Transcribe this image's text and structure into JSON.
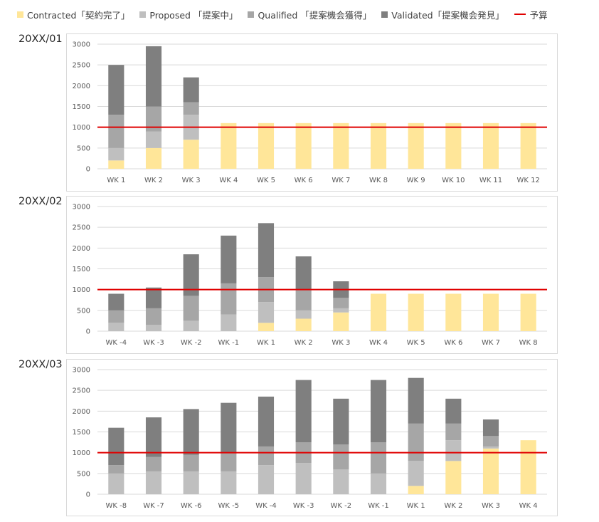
{
  "legend": {
    "items": [
      {
        "label": "Contracted「契約完了」",
        "color": "#ffe699"
      },
      {
        "label": "Proposed 「提案中」",
        "color": "#bfbfbf"
      },
      {
        "label": "Qualified 「提案機会獲得」",
        "color": "#a6a6a6"
      },
      {
        "label": "Validated「提案機会発見」",
        "color": "#7f7f7f"
      }
    ],
    "budget_label": "予算",
    "budget_color": "#e00000"
  },
  "chart_data": [
    {
      "type": "bar",
      "stacked": true,
      "period_label": "20XX/01",
      "categories": [
        "WK 1",
        "WK 2",
        "WK 3",
        "WK 4",
        "WK 5",
        "WK 6",
        "WK 7",
        "WK 8",
        "WK 9",
        "WK 10",
        "WK 11",
        "WK 12"
      ],
      "series": [
        {
          "name": "Contracted「契約完了」",
          "color": "#ffe699",
          "values": [
            200,
            500,
            700,
            1100,
            1100,
            1100,
            1100,
            1100,
            1100,
            1100,
            1100,
            1100
          ]
        },
        {
          "name": "Proposed 「提案中」",
          "color": "#bfbfbf",
          "values": [
            300,
            400,
            600,
            0,
            0,
            0,
            0,
            0,
            0,
            0,
            0,
            0
          ]
        },
        {
          "name": "Qualified 「提案機会獲得」",
          "color": "#a6a6a6",
          "values": [
            800,
            600,
            300,
            0,
            0,
            0,
            0,
            0,
            0,
            0,
            0,
            0
          ]
        },
        {
          "name": "Validated「提案機会発見」",
          "color": "#7f7f7f",
          "values": [
            1200,
            1450,
            600,
            0,
            0,
            0,
            0,
            0,
            0,
            0,
            0,
            0
          ]
        }
      ],
      "budget": 1000,
      "ylim": [
        0,
        3000
      ],
      "yticks": [
        0,
        500,
        1000,
        1500,
        2000,
        2500,
        3000
      ],
      "grid": true
    },
    {
      "type": "bar",
      "stacked": true,
      "period_label": "20XX/02",
      "categories": [
        "WK -4",
        "WK -3",
        "WK -2",
        "WK -1",
        "WK 1",
        "WK 2",
        "WK 3",
        "WK 4",
        "WK 5",
        "WK 6",
        "WK 7",
        "WK 8"
      ],
      "series": [
        {
          "name": "Contracted「契約完了」",
          "color": "#ffe699",
          "values": [
            0,
            0,
            0,
            0,
            200,
            300,
            450,
            900,
            900,
            900,
            900,
            900
          ]
        },
        {
          "name": "Proposed 「提案中」",
          "color": "#bfbfbf",
          "values": [
            200,
            150,
            250,
            400,
            500,
            200,
            100,
            0,
            0,
            0,
            0,
            0
          ]
        },
        {
          "name": "Qualified 「提案機会獲得」",
          "color": "#a6a6a6",
          "values": [
            300,
            400,
            600,
            750,
            600,
            500,
            250,
            0,
            0,
            0,
            0,
            0
          ]
        },
        {
          "name": "Validated「提案機会発見」",
          "color": "#7f7f7f",
          "values": [
            400,
            500,
            1000,
            1150,
            1300,
            800,
            400,
            0,
            0,
            0,
            0,
            0
          ]
        }
      ],
      "budget": 1000,
      "ylim": [
        0,
        3000
      ],
      "yticks": [
        0,
        500,
        1000,
        1500,
        2000,
        2500,
        3000
      ],
      "grid": true
    },
    {
      "type": "bar",
      "stacked": true,
      "period_label": "20XX/03",
      "categories": [
        "WK -8",
        "WK -7",
        "WK -6",
        "WK -5",
        "WK -4",
        "WK -3",
        "WK -2",
        "WK -1",
        "WK 1",
        "WK 2",
        "WK 3",
        "WK 4"
      ],
      "series": [
        {
          "name": "Contracted「契約完了」",
          "color": "#ffe699",
          "values": [
            0,
            0,
            0,
            0,
            0,
            0,
            0,
            0,
            200,
            800,
            1100,
            1300
          ]
        },
        {
          "name": "Proposed 「提案中」",
          "color": "#bfbfbf",
          "values": [
            500,
            550,
            550,
            550,
            700,
            750,
            600,
            500,
            600,
            500,
            50,
            0
          ]
        },
        {
          "name": "Qualified 「提案機会獲得」",
          "color": "#a6a6a6",
          "values": [
            200,
            350,
            400,
            450,
            450,
            500,
            600,
            750,
            900,
            400,
            250,
            0
          ]
        },
        {
          "name": "Validated「提案機会発見」",
          "color": "#7f7f7f",
          "values": [
            900,
            950,
            1100,
            1200,
            1200,
            1500,
            1100,
            1500,
            1100,
            600,
            400,
            0
          ]
        }
      ],
      "budget": 1000,
      "ylim": [
        0,
        3000
      ],
      "yticks": [
        0,
        500,
        1000,
        1500,
        2000,
        2500,
        3000
      ],
      "grid": true
    }
  ]
}
